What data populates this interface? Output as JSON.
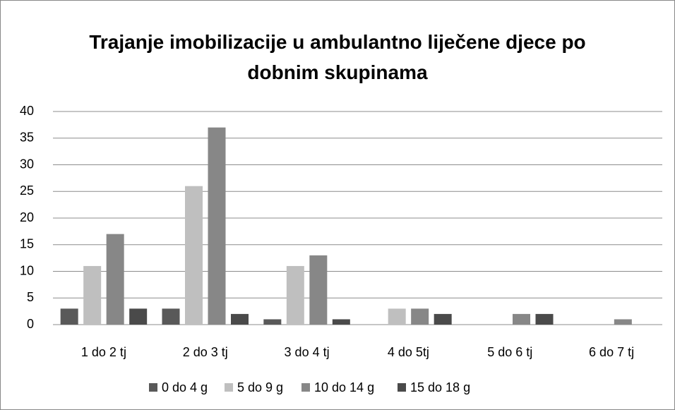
{
  "chart_data": {
    "type": "bar",
    "title": "Trajanje imobilizacije u ambulantno liječene djece po dobnim skupinama",
    "categories": [
      "1 do 2 tj",
      "2 do 3 tj",
      "3 do 4 tj",
      "4 do 5tj",
      "5 do 6 tj",
      "6 do 7 tj"
    ],
    "series": [
      {
        "name": "0 do 4 g",
        "color": "#595959",
        "values": [
          3,
          3,
          1,
          0,
          0,
          0
        ]
      },
      {
        "name": "5 do 9 g",
        "color": "#bfbfbf",
        "values": [
          11,
          26,
          11,
          3,
          0,
          0
        ]
      },
      {
        "name": "10 do 14 g",
        "color": "#878787",
        "values": [
          17,
          37,
          13,
          3,
          2,
          1
        ]
      },
      {
        "name": "15 do 18 g",
        "color": "#4a4a4a",
        "values": [
          3,
          2,
          1,
          2,
          2,
          0
        ]
      }
    ],
    "ylim": [
      0,
      40
    ],
    "yticks": [
      0,
      5,
      10,
      15,
      20,
      25,
      30,
      35,
      40
    ],
    "grid": true,
    "legend": "bottom"
  }
}
